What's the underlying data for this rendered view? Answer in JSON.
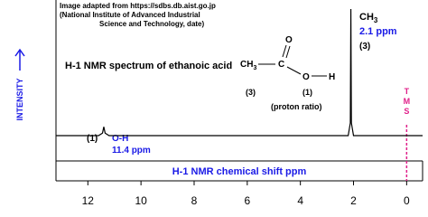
{
  "chart_data": {
    "type": "line",
    "title": "H-1 NMR spectrum of ethanoic acid",
    "xlabel": "H-1 NMR chemical shift  ppm",
    "ylabel": "INTENSITY",
    "x": [
      13.2,
      11.6,
      11.45,
      11.4,
      11.35,
      11.2,
      2.2,
      2.12,
      2.1,
      2.08,
      2.0,
      -0.6
    ],
    "series": [
      {
        "color": "#000000",
        "values": [
          0,
          0,
          2,
          7,
          2,
          0,
          0,
          10,
          100,
          10,
          0,
          0
        ]
      }
    ],
    "xlim": [
      13.2,
      -0.6
    ],
    "xticks": [
      12,
      10,
      8,
      6,
      4,
      2,
      0
    ],
    "ylim": [
      0,
      100
    ],
    "source": [
      "Image adapted from https://sdbs.db.aist.go.jp",
      "(National Institute of Advanced Industrial",
      "Science and Technology, date)"
    ],
    "structure": {
      "ch": "CH",
      "sub": "3",
      "c": "C",
      "o_double": "O",
      "o": "O",
      "h": "H",
      "ratio_ch3": "(3)",
      "ratio_oh": "(1)",
      "note": "(proton ratio)"
    },
    "peaks": [
      {
        "group": "CH",
        "group_sub": "3",
        "shift": "2.1 ppm",
        "ratio": "(3)"
      },
      {
        "group": "O-H",
        "shift": "11.4 ppm",
        "ratio": "(1)"
      }
    ],
    "reference": {
      "label": "TMS",
      "x": 0
    }
  }
}
